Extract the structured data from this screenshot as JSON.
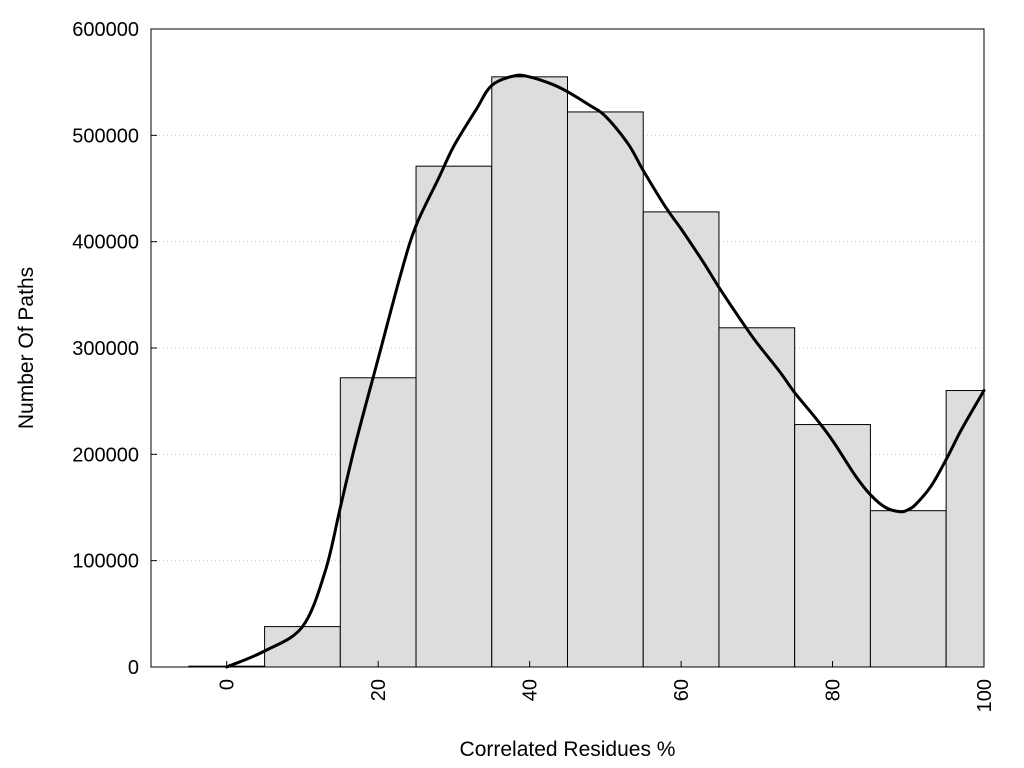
{
  "chart_data": {
    "type": "bar",
    "xlabel": "Correlated Residues %",
    "ylabel": "Number Of Paths",
    "xlim": [
      -10,
      100
    ],
    "ylim": [
      0,
      600000
    ],
    "grid": "horizontal dotted",
    "bar_width": 10,
    "bar_color": "#dddddd",
    "curve_color": "#000000",
    "x_ticks": [
      0,
      20,
      40,
      60,
      80,
      100
    ],
    "x_tick_labels": [
      "0",
      "20",
      "40",
      "60",
      "80",
      "100"
    ],
    "y_ticks": [
      0,
      100000,
      200000,
      300000,
      400000,
      500000,
      600000
    ],
    "y_tick_labels": [
      "0",
      "100000",
      "200000",
      "300000",
      "400000",
      "500000",
      "600000"
    ],
    "bars": [
      {
        "x": 0,
        "value": 800
      },
      {
        "x": 10,
        "value": 38000
      },
      {
        "x": 20,
        "value": 272000
      },
      {
        "x": 30,
        "value": 471000
      },
      {
        "x": 40,
        "value": 555000
      },
      {
        "x": 50,
        "value": 522000
      },
      {
        "x": 60,
        "value": 428000
      },
      {
        "x": 70,
        "value": 319000
      },
      {
        "x": 80,
        "value": 228000
      },
      {
        "x": 90,
        "value": 147000
      },
      {
        "x": 100,
        "value": 260000
      }
    ],
    "smooth_curve": {
      "x": [
        0,
        5,
        10,
        13,
        15,
        17,
        20,
        23,
        25,
        28,
        30,
        33,
        35,
        38,
        40,
        43,
        45,
        48,
        50,
        53,
        55,
        58,
        60,
        63,
        65,
        68,
        70,
        73,
        75,
        78,
        80,
        83,
        85,
        87,
        89,
        90,
        91,
        93,
        95,
        97,
        100
      ],
      "y": [
        0,
        15000,
        38000,
        90000,
        150000,
        210000,
        290000,
        370000,
        415000,
        460000,
        490000,
        525000,
        547000,
        556000,
        555000,
        548000,
        541000,
        528000,
        518000,
        492000,
        467000,
        432000,
        412000,
        380000,
        357000,
        325000,
        305000,
        278000,
        258000,
        232000,
        213000,
        180000,
        162000,
        150000,
        146000,
        148000,
        153000,
        170000,
        195000,
        223000,
        260000
      ]
    }
  }
}
